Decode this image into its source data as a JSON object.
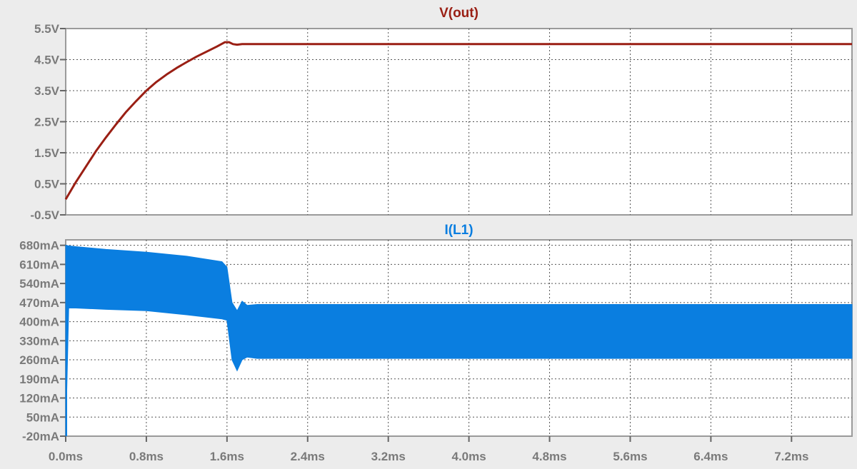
{
  "chart_data": [
    {
      "type": "line",
      "title": "V(out)",
      "series": [
        {
          "name": "V(out)",
          "color": "#9a1f14",
          "x": [
            0,
            0.1,
            0.2,
            0.3,
            0.4,
            0.5,
            0.6,
            0.7,
            0.8,
            0.9,
            1.0,
            1.1,
            1.2,
            1.3,
            1.4,
            1.5,
            1.58,
            1.62,
            1.66,
            1.7,
            1.75,
            1.8,
            2.0,
            3.0,
            4.0,
            5.0,
            6.0,
            7.0,
            7.8
          ],
          "values": [
            0.0,
            0.55,
            1.05,
            1.55,
            2.0,
            2.42,
            2.82,
            3.17,
            3.5,
            3.78,
            4.02,
            4.23,
            4.42,
            4.6,
            4.76,
            4.92,
            5.06,
            5.06,
            5.0,
            4.98,
            5.0,
            5.0,
            5.0,
            5.0,
            5.0,
            5.0,
            5.0,
            5.0,
            5.0
          ]
        }
      ],
      "xlim": [
        0,
        7.8
      ],
      "ylim": [
        -0.5,
        5.5
      ],
      "yticks": [
        5.5,
        4.5,
        3.5,
        2.5,
        1.5,
        0.5,
        -0.5
      ],
      "ytick_labels": [
        "5.5V",
        "4.5V",
        "3.5V",
        "2.5V",
        "1.5V",
        "0.5V",
        "-0.5V"
      ],
      "grid": true
    },
    {
      "type": "area",
      "title": "I(L1)",
      "series": [
        {
          "name": "I(L1)",
          "color": "#0a7ee0",
          "x": [
            0,
            0.03,
            0.1,
            0.4,
            0.8,
            1.2,
            1.55,
            1.6,
            1.65,
            1.7,
            1.75,
            1.8,
            1.9,
            2.0,
            3.0,
            4.0,
            5.0,
            6.0,
            7.0,
            7.8
          ],
          "upper": [
            680,
            678,
            675,
            665,
            655,
            640,
            620,
            600,
            470,
            440,
            475,
            460,
            463,
            463,
            463,
            463,
            463,
            463,
            463,
            463
          ],
          "lower": [
            -20,
            450,
            450,
            445,
            440,
            425,
            410,
            405,
            260,
            220,
            260,
            270,
            265,
            265,
            265,
            265,
            265,
            265,
            265,
            265
          ]
        }
      ],
      "xlim": [
        0,
        7.8
      ],
      "ylim": [
        -20,
        700
      ],
      "yticks": [
        680,
        610,
        540,
        470,
        400,
        330,
        260,
        190,
        120,
        50,
        -20
      ],
      "ytick_labels": [
        "680mA",
        "610mA",
        "540mA",
        "470mA",
        "400mA",
        "330mA",
        "260mA",
        "190mA",
        "120mA",
        "50mA",
        "-20mA"
      ],
      "grid": true
    }
  ],
  "x_axis": {
    "ticks": [
      0,
      0.8,
      1.6,
      2.4,
      3.2,
      4.0,
      4.8,
      5.6,
      6.4,
      7.2
    ],
    "tick_labels": [
      "0.0ms",
      "0.8ms",
      "1.6ms",
      "2.4ms",
      "3.2ms",
      "4.0ms",
      "4.8ms",
      "5.6ms",
      "6.4ms",
      "7.2ms"
    ]
  }
}
